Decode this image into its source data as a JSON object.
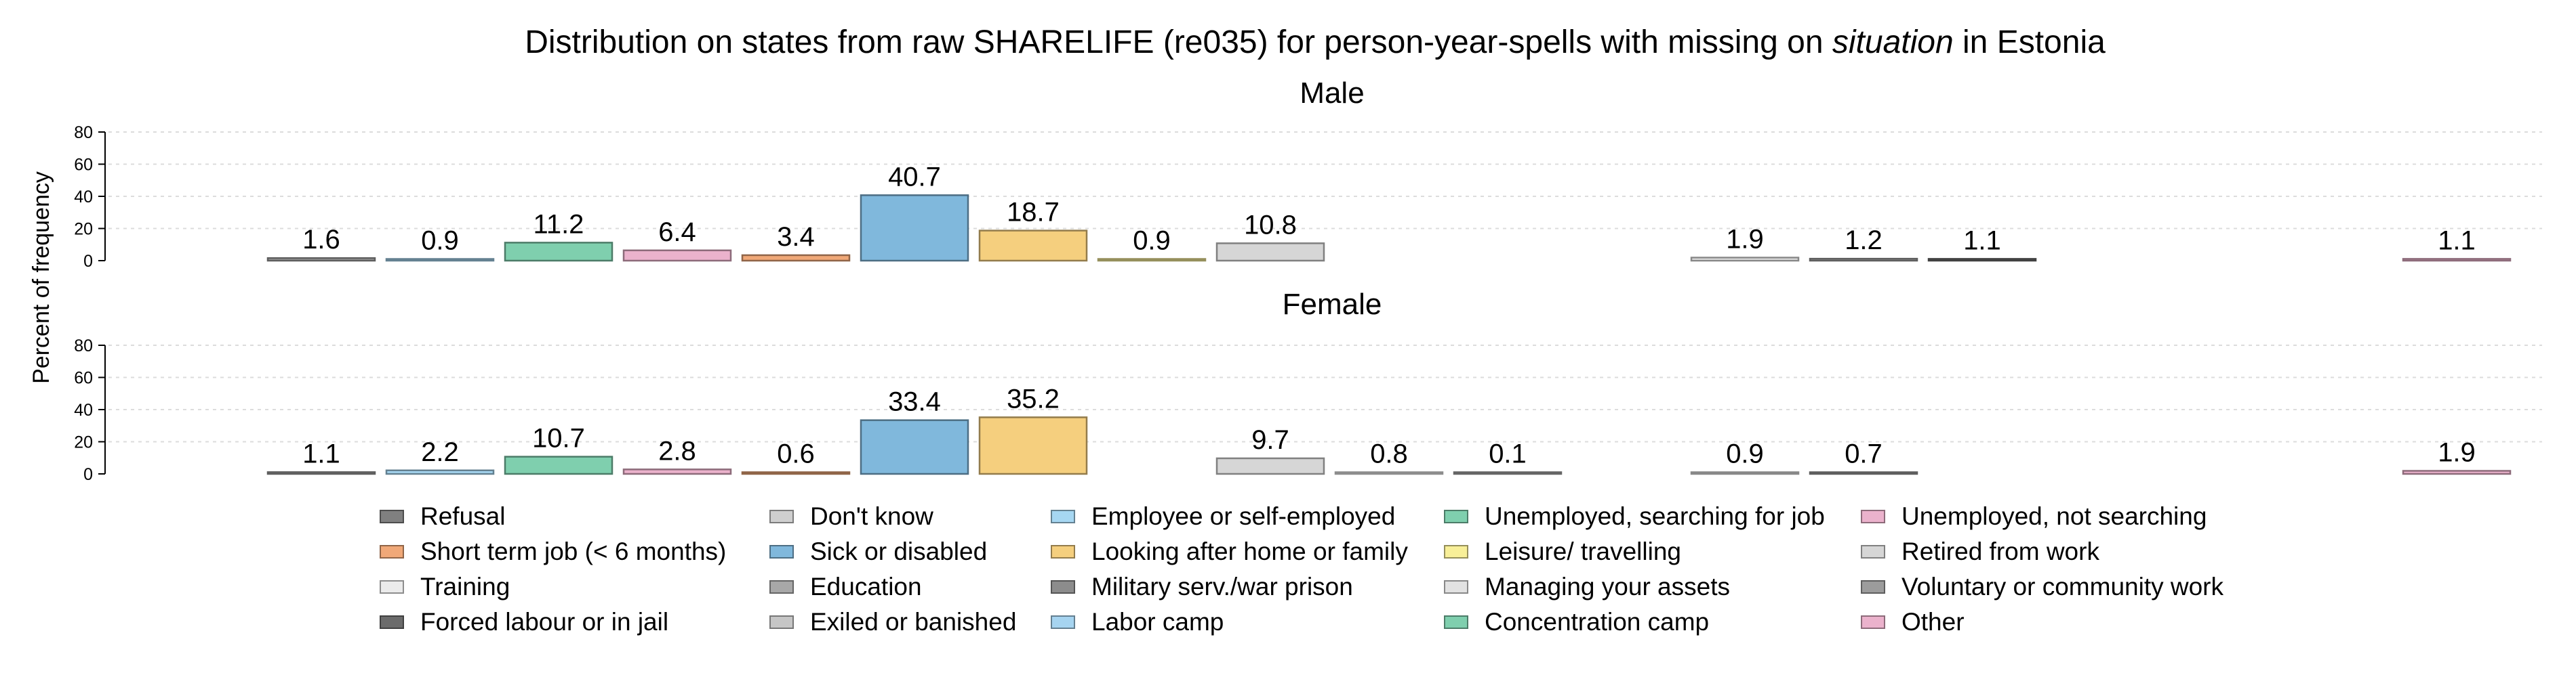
{
  "chart_data": {
    "type": "bar",
    "title_prefix": "Distribution on states from raw SHARELIFE (re035) for person-year-spells with missing on ",
    "title_emphasis": "situation",
    "title_suffix": " in Estonia",
    "ylabel": "Percent of frequency",
    "ylim": [
      0,
      80
    ],
    "yticks": [
      0,
      20,
      40,
      60,
      80
    ],
    "grid": true,
    "legend_position": "bottom",
    "categories": [
      {
        "label": "Refusal",
        "color": "#808080"
      },
      {
        "label": "Don't know",
        "color": "#cfcfcf"
      },
      {
        "label": "Employee or self-employed",
        "color": "#a6d7f2"
      },
      {
        "label": "Unemployed, searching for job",
        "color": "#7fcfae"
      },
      {
        "label": "Unemployed, not searching",
        "color": "#ebb2cc"
      },
      {
        "label": "Short term job (< 6 months)",
        "color": "#f0a878"
      },
      {
        "label": "Sick or disabled",
        "color": "#80b8dc"
      },
      {
        "label": "Looking after home or family",
        "color": "#f5cf7e"
      },
      {
        "label": "Leisure/ travelling",
        "color": "#f8ef98"
      },
      {
        "label": "Retired from work",
        "color": "#d6d6d6"
      },
      {
        "label": "Training",
        "color": "#ebebeb"
      },
      {
        "label": "Education",
        "color": "#a8a8a8"
      },
      {
        "label": "Military serv./war prison",
        "color": "#8c8c8c"
      },
      {
        "label": "Managing your assets",
        "color": "#e2e2e2"
      },
      {
        "label": "Voluntary or community work",
        "color": "#9c9c9c"
      },
      {
        "label": "Forced labour or in jail",
        "color": "#6b6b6b"
      },
      {
        "label": "Exiled or banished",
        "color": "#c6c6c6"
      },
      {
        "label": "Labor camp",
        "color": "#a6d4f0"
      },
      {
        "label": "Concentration camp",
        "color": "#7fcfae"
      },
      {
        "label": "Other",
        "color": "#ebb2cc"
      }
    ],
    "bar_colors": [
      "#9c9c9c",
      "#a6d7f2",
      "#7fcfae",
      "#ebb2cc",
      "#f0a878",
      "#80b8dc",
      "#f5cf7e",
      "#f8ef98",
      "#d6d6d6",
      "#ebebeb",
      "#a8a8a8",
      "#8c8c8c",
      "#e2e2e2",
      "#9c9c9c",
      "#6b6b6b",
      "#c6c6c6",
      "#a6d4f0",
      "#7fcfae",
      "#ebb2cc"
    ],
    "panels": [
      {
        "title": "Male",
        "values": [
          1.6,
          0.9,
          11.2,
          6.4,
          3.4,
          40.7,
          18.7,
          0.9,
          10.8,
          null,
          null,
          null,
          1.9,
          1.2,
          1.1,
          null,
          null,
          null,
          1.1
        ]
      },
      {
        "title": "Female",
        "values": [
          1.1,
          2.2,
          10.7,
          2.8,
          0.6,
          33.4,
          35.2,
          null,
          9.7,
          0.8,
          0.1,
          null,
          0.9,
          0.7,
          null,
          null,
          null,
          null,
          1.9
        ]
      }
    ]
  }
}
